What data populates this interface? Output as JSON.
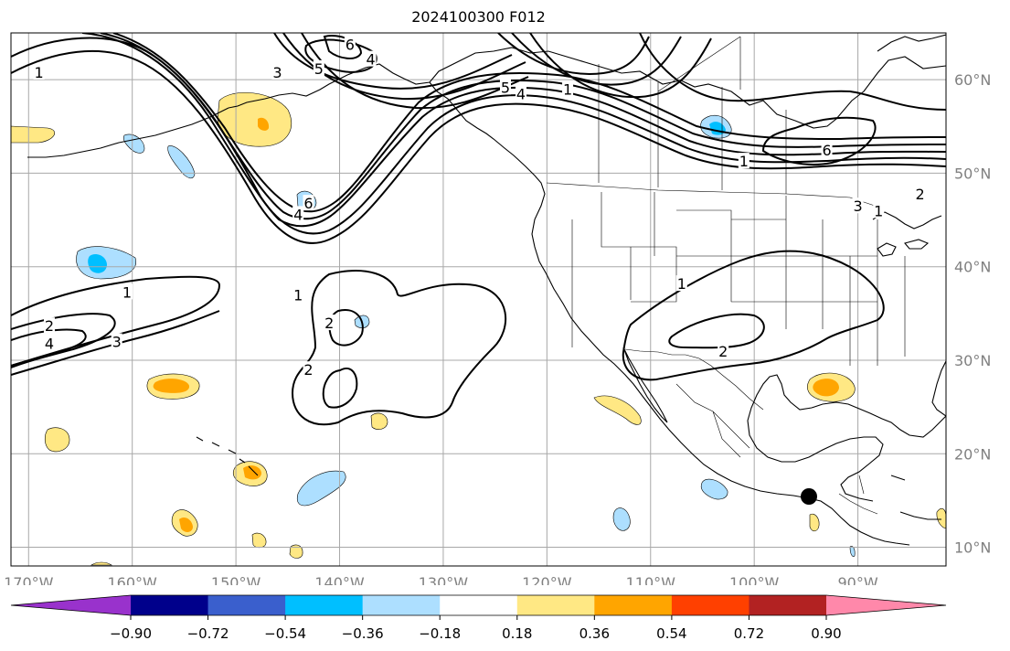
{
  "title": "2024100300 F012",
  "marker_color": "#000000",
  "map": {
    "lon_ticks": [
      {
        "lon": -170,
        "label": "170°W"
      },
      {
        "lon": -160,
        "label": "160°W"
      },
      {
        "lon": -150,
        "label": "150°W"
      },
      {
        "lon": -140,
        "label": "140°W"
      },
      {
        "lon": -130,
        "label": "130°W"
      },
      {
        "lon": -120,
        "label": "120°W"
      },
      {
        "lon": -110,
        "label": "110°W"
      },
      {
        "lon": -100,
        "label": "100°W"
      },
      {
        "lon": -90,
        "label": "90°W"
      }
    ],
    "lat_ticks": [
      {
        "lat": 60,
        "label": "60°N"
      },
      {
        "lat": 50,
        "label": "50°N"
      },
      {
        "lat": 40,
        "label": "40°N"
      },
      {
        "lat": 30,
        "label": "30°N"
      },
      {
        "lat": 20,
        "label": "20°N"
      },
      {
        "lat": 10,
        "label": "10°N"
      }
    ],
    "extent": {
      "lon_min": -171.7,
      "lon_max": -81.5,
      "lat_min": 8,
      "lat_max": 65
    }
  },
  "contour_labels": [
    {
      "text": "1",
      "lon": -169,
      "lat": 60.8
    },
    {
      "text": "3",
      "lon": -146,
      "lat": 60.8
    },
    {
      "text": "6",
      "lon": -139,
      "lat": 63.8
    },
    {
      "text": "4",
      "lon": -137,
      "lat": 62.2
    },
    {
      "text": "5",
      "lon": -142,
      "lat": 61.2
    },
    {
      "text": "5",
      "lon": -124,
      "lat": 59.2
    },
    {
      "text": "4",
      "lon": -122.5,
      "lat": 58.5
    },
    {
      "text": "1",
      "lon": -118,
      "lat": 59.0
    },
    {
      "text": "6",
      "lon": -93,
      "lat": 52.5
    },
    {
      "text": "1",
      "lon": -101,
      "lat": 51.3
    },
    {
      "text": "6",
      "lon": -143,
      "lat": 46.8
    },
    {
      "text": "4",
      "lon": -144,
      "lat": 45.6
    },
    {
      "text": "3",
      "lon": -90,
      "lat": 46.5
    },
    {
      "text": "1",
      "lon": -88,
      "lat": 46.0
    },
    {
      "text": "2",
      "lon": -84,
      "lat": 47.8
    },
    {
      "text": "1",
      "lon": -160.5,
      "lat": 37.3
    },
    {
      "text": "2",
      "lon": -168,
      "lat": 33.7
    },
    {
      "text": "4",
      "lon": -168,
      "lat": 31.8
    },
    {
      "text": "3",
      "lon": -161.5,
      "lat": 32.0
    },
    {
      "text": "1",
      "lon": -144,
      "lat": 37.0
    },
    {
      "text": "2",
      "lon": -141,
      "lat": 34.0
    },
    {
      "text": "2",
      "lon": -143,
      "lat": 29.0
    },
    {
      "text": "1",
      "lon": -107,
      "lat": 38.2
    },
    {
      "text": "2",
      "lon": -103,
      "lat": 31.0
    }
  ],
  "colorbar": {
    "colors": [
      "#9932CC",
      "#00008B",
      "#3A5FCD",
      "#00BFFF",
      "#ADDFFF",
      "#FFFFFF",
      "#FFE884",
      "#FFA500",
      "#FF4000",
      "#B22222",
      "#FF88AA"
    ],
    "tick_labels": [
      "−0.90",
      "−0.72",
      "−0.54",
      "−0.36",
      "−0.18",
      "0.18",
      "0.36",
      "0.54",
      "0.72",
      "0.90"
    ]
  }
}
